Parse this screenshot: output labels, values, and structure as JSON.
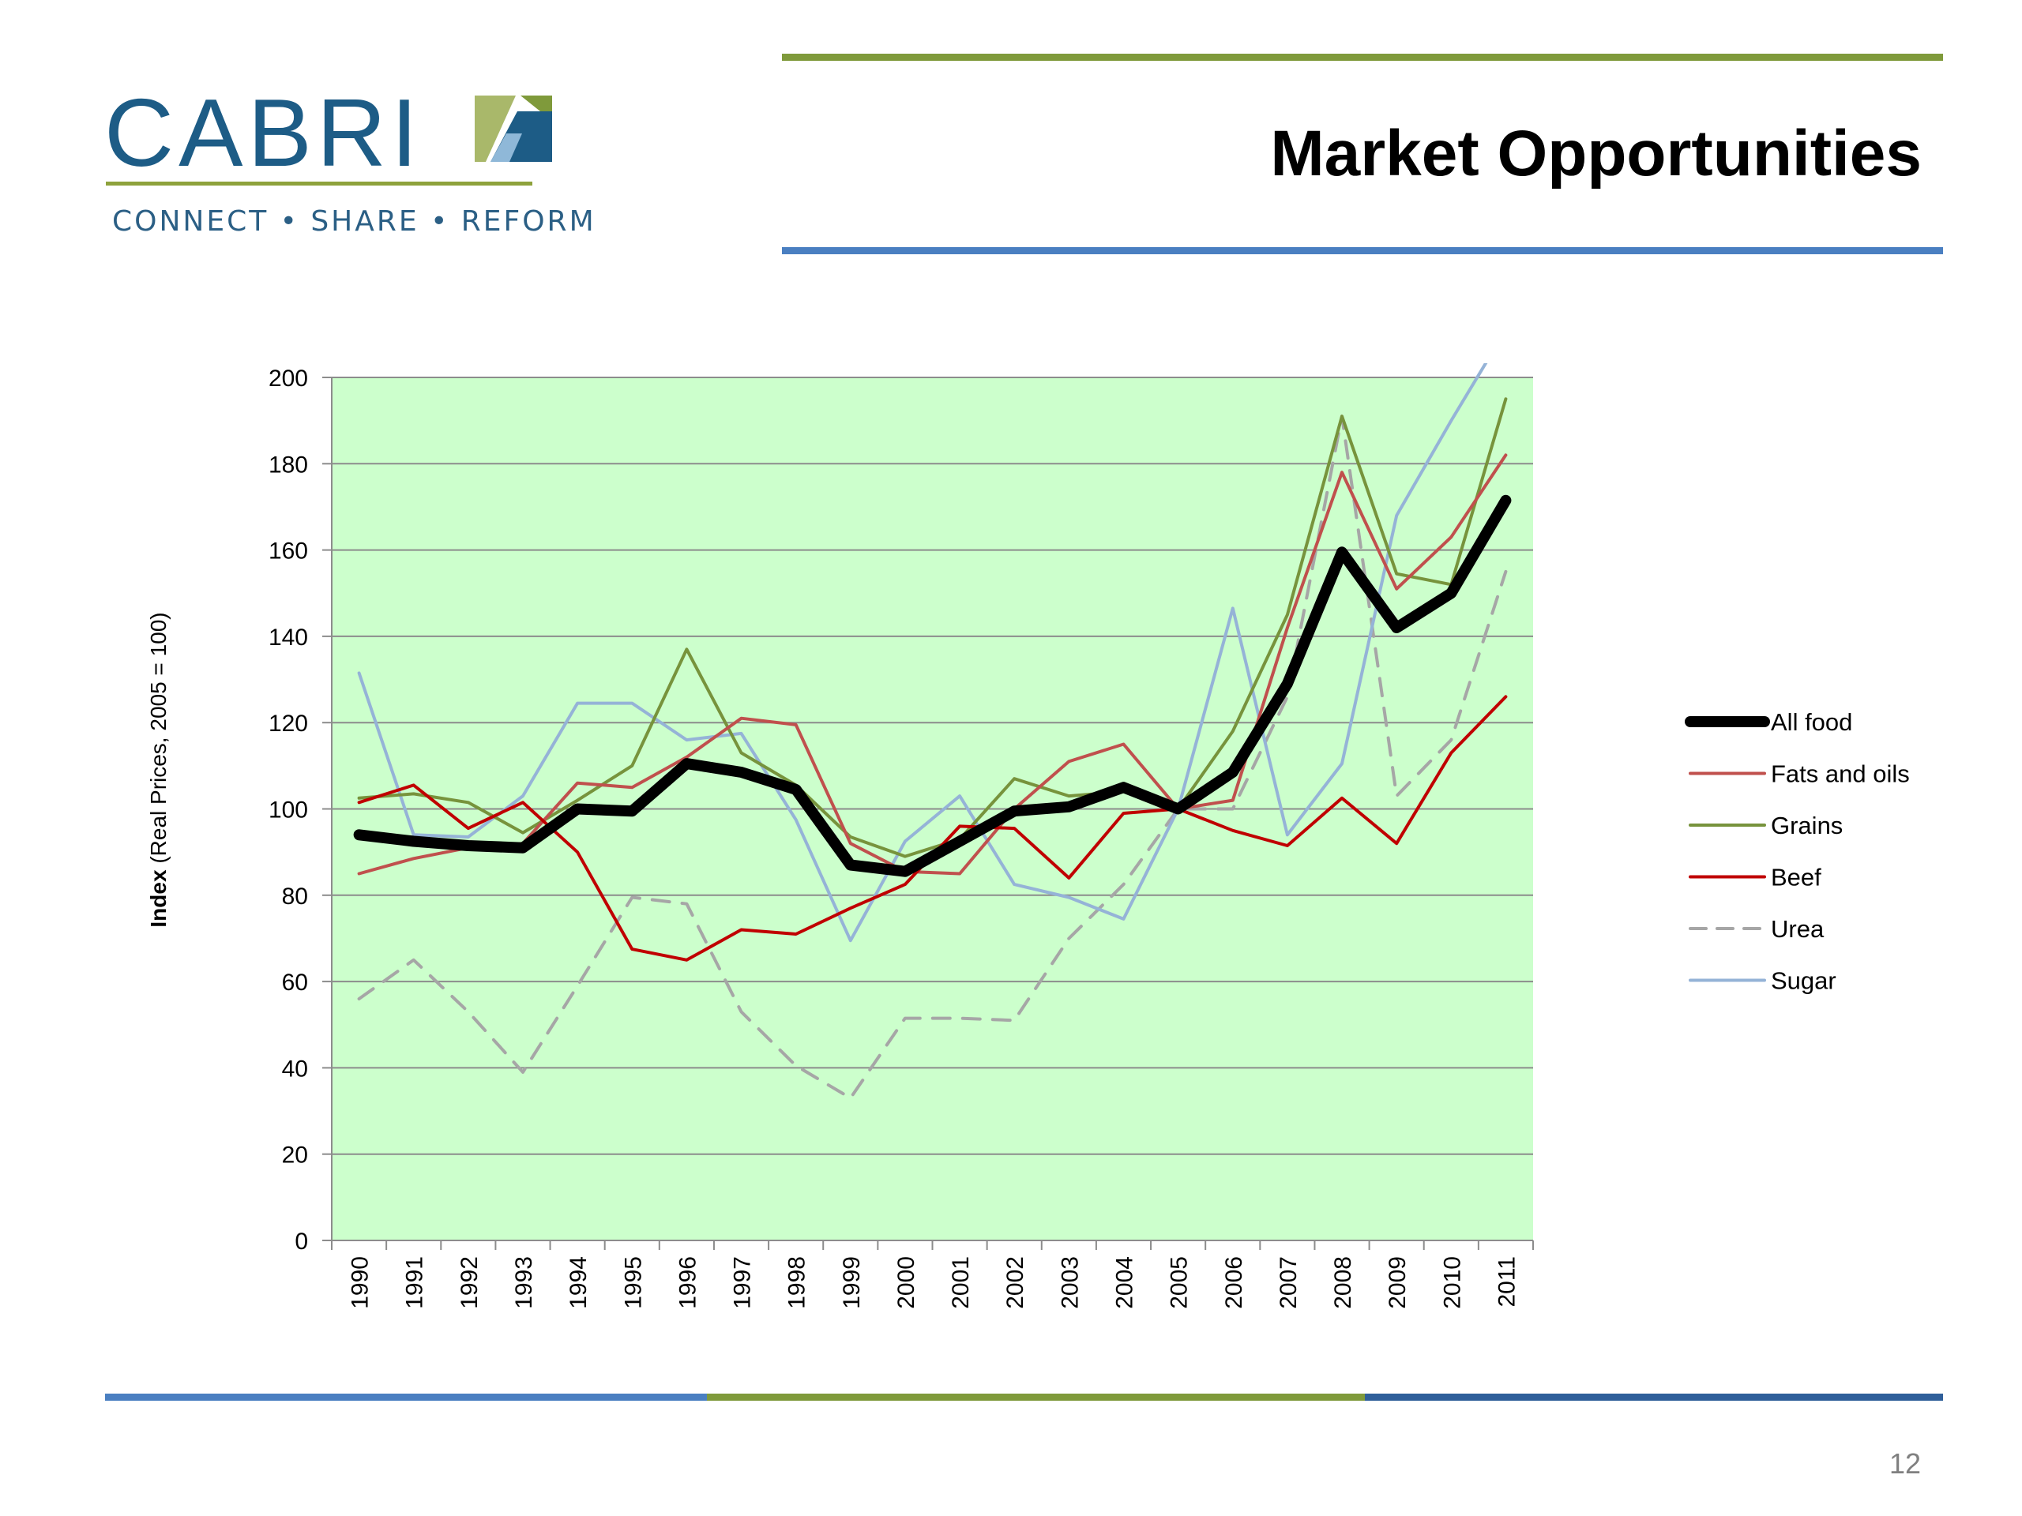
{
  "slide": {
    "title": "Market Opportunities",
    "page_number": "12"
  },
  "logo": {
    "name": "CABRI",
    "tagline": "CONNECT • SHARE • REFORM",
    "colors": {
      "text": "#1d5c86",
      "rule": "#8ea23c",
      "mark_green": "#a9b86a",
      "mark_blue": "#1d5c86",
      "mark_light": "#8fb8d8"
    }
  },
  "colors": {
    "title_rule_top": "#7f9a3b",
    "title_rule_bottom": "#4a7fc1",
    "plot_background": "#ccffcc",
    "gridline": "#8c8c8c"
  },
  "chart_data": {
    "type": "line",
    "title": "",
    "xlabel": "",
    "ylabel_bold": "Index",
    "ylabel_rest": " (Real Prices, 2005 = 100)",
    "ylim": [
      0,
      200
    ],
    "yticks": [
      0,
      20,
      40,
      60,
      80,
      100,
      120,
      140,
      160,
      180,
      200
    ],
    "grid": true,
    "legend_position": "right",
    "categories": [
      "1990",
      "1991",
      "1992",
      "1993",
      "1994",
      "1995",
      "1996",
      "1997",
      "1998",
      "1999",
      "2000",
      "2001",
      "2002",
      "2003",
      "2004",
      "2005",
      "2006",
      "2007",
      "2008",
      "2009",
      "2010",
      "2011"
    ],
    "series": [
      {
        "name": "All food",
        "color": "#000000",
        "dashed": false,
        "bold": true,
        "values": [
          94,
          92.5,
          91.5,
          91,
          100,
          99.5,
          110.5,
          108.5,
          104.5,
          87,
          85.5,
          92.5,
          99.5,
          100.5,
          105,
          100,
          108.5,
          129,
          159.5,
          142,
          150,
          171.5
        ]
      },
      {
        "name": "Fats and oils",
        "color": "#c0504d",
        "dashed": false,
        "bold": false,
        "values": [
          85,
          88.5,
          91,
          92,
          106,
          105,
          112,
          121,
          119.5,
          92,
          85.5,
          85,
          100,
          111,
          115,
          100,
          102,
          142,
          178,
          151,
          163,
          182
        ]
      },
      {
        "name": "Grains",
        "color": "#77933c",
        "dashed": false,
        "bold": false,
        "values": [
          102.5,
          103.5,
          101.5,
          94.5,
          102,
          110,
          137,
          113,
          105.5,
          93.5,
          89,
          93,
          107,
          103,
          104,
          100,
          118,
          145,
          191,
          154.5,
          152,
          195
        ]
      },
      {
        "name": "Beef",
        "color": "#c00000",
        "dashed": false,
        "bold": false,
        "values": [
          101.5,
          105.5,
          95.5,
          101.5,
          90,
          67.5,
          65,
          72,
          71,
          77,
          82.5,
          96,
          95.5,
          84,
          99,
          100,
          95,
          91.5,
          102.5,
          92,
          113,
          126
        ]
      },
      {
        "name": "Urea",
        "color": "#a6a6a6",
        "dashed": true,
        "bold": false,
        "values": [
          56,
          65,
          53,
          39,
          59,
          79.5,
          78,
          53,
          40.5,
          33,
          51.5,
          51.5,
          51,
          70,
          82.5,
          100,
          100,
          126,
          191,
          103,
          116,
          155
        ]
      },
      {
        "name": "Sugar",
        "color": "#95b3d7",
        "dashed": false,
        "bold": false,
        "values": [
          131.5,
          94,
          93.5,
          103,
          124.5,
          124.5,
          116,
          117.5,
          97.5,
          69.5,
          92.5,
          103,
          82.5,
          79.5,
          74.5,
          100,
          146.5,
          94,
          110.5,
          168,
          190,
          211
        ]
      }
    ]
  }
}
